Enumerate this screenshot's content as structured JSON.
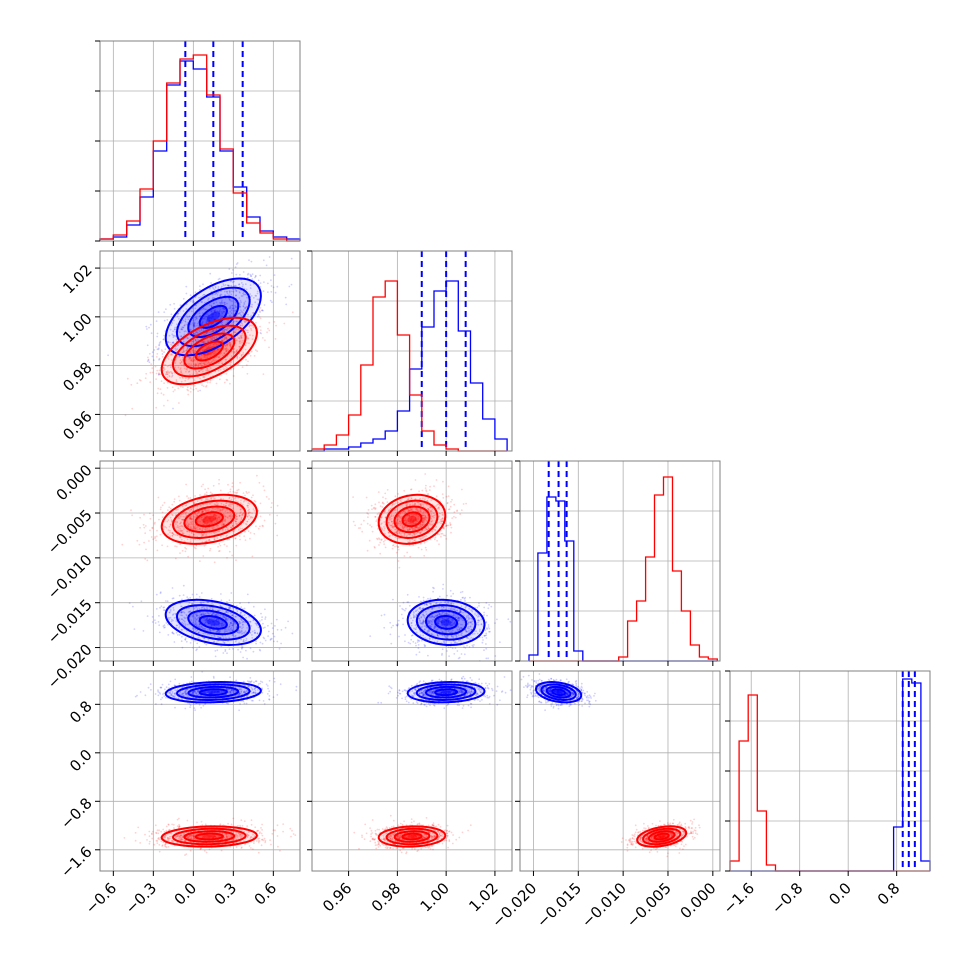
{
  "colors": {
    "red": "#ff0000",
    "blue": "#0000ff",
    "grid": "#b0b0b0",
    "frame": "#808080"
  },
  "chart_data": {
    "type": "corner",
    "grid": true,
    "dimensions": [
      {
        "id": "p0",
        "range": [
          -0.7,
          0.8
        ],
        "ticks": [
          -0.6,
          -0.3,
          0.0,
          0.3,
          0.6
        ],
        "tick_labels": [
          "−0.6",
          "−0.3",
          "0.0",
          "0.3",
          "0.6"
        ]
      },
      {
        "id": "p1",
        "range": [
          0.945,
          1.027
        ],
        "ticks": [
          0.96,
          0.98,
          1.0,
          1.02
        ],
        "tick_labels": [
          "0.96",
          "0.98",
          "1.00",
          "1.02"
        ]
      },
      {
        "id": "p2",
        "range": [
          -0.0215,
          0.0008
        ],
        "ticks": [
          -0.02,
          -0.015,
          -0.01,
          -0.005,
          0.0
        ],
        "tick_labels": [
          "−0.020",
          "−0.015",
          "−0.010",
          "−0.005",
          "0.000"
        ]
      },
      {
        "id": "p3",
        "range": [
          -1.95,
          1.35
        ],
        "ticks": [
          -1.6,
          -0.8,
          0.0,
          0.8
        ],
        "tick_labels": [
          "−1.6",
          "−0.8",
          "0.0",
          "0.8"
        ]
      }
    ],
    "series": [
      {
        "color": "#0000ff",
        "marginals": [
          {
            "edges": [
              -0.7,
              -0.6,
              -0.5,
              -0.4,
              -0.3,
              -0.2,
              -0.1,
              0.0,
              0.1,
              0.2,
              0.3,
              0.4,
              0.5,
              0.6,
              0.7,
              0.8
            ],
            "counts": [
              0.01,
              0.02,
              0.08,
              0.22,
              0.45,
              0.78,
              0.9,
              0.86,
              0.72,
              0.45,
              0.27,
              0.12,
              0.05,
              0.02,
              0.01
            ]
          },
          {
            "edges": [
              0.945,
              0.95,
              0.955,
              0.96,
              0.965,
              0.97,
              0.975,
              0.98,
              0.985,
              0.99,
              0.995,
              1.0,
              1.005,
              1.01,
              1.015,
              1.02,
              1.025
            ],
            "counts": [
              0.0,
              0.01,
              0.01,
              0.02,
              0.04,
              0.06,
              0.1,
              0.2,
              0.41,
              0.62,
              0.8,
              0.85,
              0.6,
              0.34,
              0.16,
              0.06
            ]
          },
          {
            "edges": [
              -0.0205,
              -0.0195,
              -0.0185,
              -0.0175,
              -0.0165,
              -0.0155,
              -0.0145,
              -0.0135,
              -0.0125,
              -0.0115,
              -0.0105,
              -0.0095,
              -0.0085,
              -0.0075,
              -0.0065,
              -0.0055,
              -0.0045,
              -0.0035,
              -0.0025,
              -0.0015,
              -0.0005,
              0.0005
            ],
            "counts": [
              0.03,
              0.54,
              0.82,
              0.8,
              0.6,
              0.05,
              0.0,
              0.0,
              0.0,
              0.0,
              0.0,
              0.0,
              0.0,
              0.0,
              0.0,
              0.0,
              0.0,
              0.0,
              0.0,
              0.0,
              0.0
            ]
          },
          {
            "edges": [
              -1.95,
              -1.8,
              -1.65,
              -1.5,
              -1.35,
              -1.2,
              -1.05,
              -0.9,
              -0.75,
              -0.6,
              -0.45,
              -0.3,
              -0.15,
              0.0,
              0.15,
              0.3,
              0.45,
              0.6,
              0.75,
              0.9,
              1.05,
              1.2,
              1.35
            ],
            "counts": [
              0,
              0,
              0,
              0,
              0,
              0,
              0,
              0,
              0,
              0,
              0,
              0,
              0,
              0,
              0,
              0,
              0,
              0,
              0.22,
              0.96,
              0.94,
              0.05
            ]
          }
        ],
        "quantiles": [
          [
            -0.06,
            0.15,
            0.37
          ],
          [
            0.99,
            1.0,
            1.008
          ],
          [
            -0.0183,
            -0.0172,
            -0.0163
          ],
          [
            0.9,
            1.0,
            1.1
          ]
        ],
        "centers": [
          0.15,
          1.0,
          -0.0172,
          1.0
        ],
        "sigmas": [
          0.17,
          0.0075,
          0.0012,
          0.08
        ],
        "correlations": {
          "0-1": 0.55,
          "0-2": -0.35,
          "1-2": -0.1,
          "0-3": 0.15,
          "1-3": 0.1,
          "2-3": -0.3
        }
      },
      {
        "color": "#ff0000",
        "marginals": [
          {
            "edges": [
              -0.7,
              -0.6,
              -0.5,
              -0.4,
              -0.3,
              -0.2,
              -0.1,
              0.0,
              0.1,
              0.2,
              0.3,
              0.4,
              0.5,
              0.6,
              0.7,
              0.8
            ],
            "counts": [
              0.01,
              0.03,
              0.1,
              0.26,
              0.5,
              0.79,
              0.91,
              0.93,
              0.73,
              0.46,
              0.24,
              0.09,
              0.04,
              0.01,
              0.0
            ]
          },
          {
            "edges": [
              0.945,
              0.95,
              0.955,
              0.96,
              0.965,
              0.97,
              0.975,
              0.98,
              0.985,
              0.99,
              0.995,
              1.0,
              1.005,
              1.01,
              1.015,
              1.02,
              1.025
            ],
            "counts": [
              0.01,
              0.03,
              0.08,
              0.18,
              0.43,
              0.77,
              0.85,
              0.58,
              0.28,
              0.1,
              0.03,
              0.01,
              0.0,
              0.0,
              0.0,
              0.0
            ]
          },
          {
            "edges": [
              -0.0205,
              -0.0195,
              -0.0185,
              -0.0175,
              -0.0165,
              -0.0155,
              -0.0145,
              -0.0135,
              -0.0125,
              -0.0115,
              -0.0105,
              -0.0095,
              -0.0085,
              -0.0075,
              -0.0065,
              -0.0055,
              -0.0045,
              -0.0035,
              -0.0025,
              -0.0015,
              -0.0005,
              0.0005
            ],
            "counts": [
              0,
              0,
              0,
              0,
              0,
              0,
              0,
              0,
              0,
              0,
              0.02,
              0.2,
              0.3,
              0.52,
              0.83,
              0.92,
              0.45,
              0.25,
              0.08,
              0.02,
              0.01
            ]
          },
          {
            "edges": [
              -1.95,
              -1.8,
              -1.65,
              -1.5,
              -1.35,
              -1.2,
              -1.05,
              -0.9,
              -0.75,
              -0.6,
              -0.45,
              -0.3,
              -0.15,
              0.0,
              0.15,
              0.3,
              0.45,
              0.6,
              0.75,
              0.9,
              1.05,
              1.2,
              1.35
            ],
            "counts": [
              0.05,
              0.65,
              0.88,
              0.3,
              0.03,
              0,
              0,
              0,
              0,
              0,
              0,
              0,
              0,
              0,
              0,
              0,
              0,
              0,
              0,
              0,
              0,
              0
            ]
          }
        ],
        "quantiles": null,
        "centers": [
          0.12,
          0.986,
          -0.0057,
          -1.38
        ],
        "sigmas": [
          0.17,
          0.0065,
          0.0013,
          0.08
        ],
        "correlations": {
          "0-1": 0.55,
          "0-2": 0.3,
          "1-2": 0.15,
          "0-3": 0.1,
          "1-3": 0.1,
          "2-3": 0.35
        }
      }
    ]
  }
}
